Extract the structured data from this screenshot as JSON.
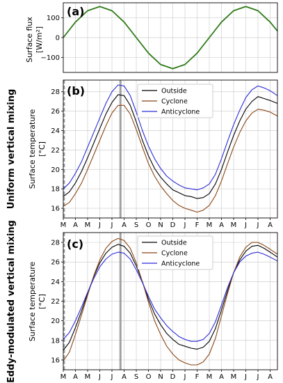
{
  "colors": {
    "flux": "#2d7a16",
    "outside": "#000000",
    "cyclone": "#8b4513",
    "anticyclone": "#2a2ad8",
    "grid": "#cfcfcf",
    "vline": "#a0a0a0"
  },
  "months": [
    "M",
    "A",
    "M",
    "J",
    "J",
    "A",
    "S",
    "O",
    "N",
    "D",
    "J",
    "F",
    "M",
    "A",
    "M",
    "J",
    "J",
    "A"
  ],
  "chart_data": [
    {
      "panel_label": "(a)",
      "type": "line",
      "ylabel": [
        "Surface flux",
        "[W/m²]"
      ],
      "yticks": [
        -100,
        0,
        100
      ],
      "ylim": [
        -175,
        175
      ],
      "xlim": [
        0,
        17.6
      ],
      "grid": true,
      "series": [
        {
          "key": "flux",
          "x": [
            0,
            1,
            2,
            3,
            4,
            5,
            6,
            7,
            8,
            9,
            10,
            11,
            12,
            13,
            14,
            15,
            16,
            17,
            17.6
          ],
          "y": [
            0,
            78,
            135,
            156,
            135,
            78,
            0,
            -78,
            -135,
            -156,
            -135,
            -78,
            0,
            78,
            135,
            156,
            135,
            78,
            33
          ]
        }
      ]
    },
    {
      "panel_label": "(b)",
      "row_label": "Uniform vertical mixing",
      "type": "line",
      "ylabel": [
        "Surface temperature",
        "[°C]"
      ],
      "yticks": [
        16,
        18,
        20,
        22,
        24,
        26,
        28
      ],
      "ylim": [
        15,
        29.2
      ],
      "xlim": [
        0,
        17.6
      ],
      "grid": true,
      "vlines": [
        {
          "x": 4.7,
          "style": "solid"
        },
        {
          "x": 0.08,
          "style": "dashed"
        }
      ],
      "legend": {
        "position": "upper-right",
        "entries": [
          "Outside",
          "Cyclone",
          "Anticyclone"
        ]
      },
      "series": [
        {
          "name": "Outside",
          "key": "outside",
          "x": [
            0,
            0.5,
            1,
            1.5,
            2,
            2.5,
            3,
            3.5,
            4,
            4.5,
            5,
            5.5,
            6,
            6.5,
            7,
            7.5,
            8,
            8.5,
            9,
            9.5,
            10,
            10.5,
            11,
            11.5,
            12,
            12.5,
            13,
            13.5,
            14,
            14.5,
            15,
            15.5,
            16,
            16.5,
            17,
            17.6
          ],
          "y": [
            17.2,
            17.7,
            18.6,
            19.8,
            21.2,
            22.7,
            24.2,
            25.7,
            26.9,
            27.7,
            27.6,
            26.6,
            24.9,
            23.0,
            21.4,
            20.1,
            19.2,
            18.5,
            17.9,
            17.6,
            17.3,
            17.2,
            17.0,
            17.1,
            17.5,
            18.5,
            20.0,
            21.8,
            23.5,
            25.0,
            26.2,
            27.0,
            27.5,
            27.3,
            27.1,
            26.8
          ]
        },
        {
          "name": "Cyclone",
          "key": "cyclone",
          "x": [
            0,
            0.5,
            1,
            1.5,
            2,
            2.5,
            3,
            3.5,
            4,
            4.5,
            5,
            5.5,
            6,
            6.5,
            7,
            7.5,
            8,
            8.5,
            9,
            9.5,
            10,
            10.5,
            11,
            11.5,
            12,
            12.5,
            13,
            13.5,
            14,
            14.5,
            15,
            15.5,
            16,
            16.5,
            17,
            17.6
          ],
          "y": [
            16.2,
            16.6,
            17.5,
            18.6,
            20.0,
            21.5,
            23.0,
            24.5,
            25.8,
            26.6,
            26.6,
            25.7,
            24.1,
            22.3,
            20.6,
            19.3,
            18.3,
            17.5,
            16.8,
            16.3,
            16.0,
            15.8,
            15.6,
            15.8,
            16.3,
            17.3,
            18.8,
            20.6,
            22.3,
            23.8,
            25.0,
            25.8,
            26.2,
            26.1,
            25.9,
            25.5
          ]
        },
        {
          "name": "Anticyclone",
          "key": "anticyclone",
          "x": [
            0,
            0.5,
            1,
            1.5,
            2,
            2.5,
            3,
            3.5,
            4,
            4.5,
            5,
            5.5,
            6,
            6.5,
            7,
            7.5,
            8,
            8.5,
            9,
            9.5,
            10,
            10.5,
            11,
            11.5,
            12,
            12.5,
            13,
            13.5,
            14,
            14.5,
            15,
            15.5,
            16,
            16.5,
            17,
            17.6
          ],
          "y": [
            18.0,
            18.6,
            19.6,
            20.8,
            22.3,
            23.8,
            25.3,
            26.8,
            28.0,
            28.7,
            28.6,
            27.6,
            25.9,
            24.0,
            22.4,
            21.1,
            20.1,
            19.3,
            18.8,
            18.4,
            18.1,
            18.0,
            17.9,
            18.1,
            18.5,
            19.5,
            21.1,
            22.9,
            24.6,
            26.1,
            27.4,
            28.2,
            28.6,
            28.4,
            28.1,
            27.6
          ]
        }
      ]
    },
    {
      "panel_label": "(c)",
      "row_label": "Eddy-modulated vertical mixing",
      "type": "line",
      "ylabel": [
        "Surface temperature",
        "[°C]"
      ],
      "yticks": [
        16,
        18,
        20,
        22,
        24,
        26,
        28
      ],
      "ylim": [
        15,
        29.0
      ],
      "xlim": [
        0,
        17.6
      ],
      "grid": true,
      "vlines": [
        {
          "x": 4.7,
          "style": "solid"
        },
        {
          "x": 0.08,
          "style": "dashed"
        }
      ],
      "legend": {
        "position": "upper-right",
        "entries": [
          "Outside",
          "Cyclone",
          "Anticyclone"
        ]
      },
      "series": [
        {
          "name": "Outside",
          "key": "outside",
          "x": [
            0,
            0.5,
            1,
            1.5,
            2,
            2.5,
            3,
            3.5,
            4,
            4.5,
            5,
            5.5,
            6,
            6.5,
            7,
            7.5,
            8,
            8.5,
            9,
            9.5,
            10,
            10.5,
            11,
            11.5,
            12,
            12.5,
            13,
            13.5,
            14,
            14.5,
            15,
            15.5,
            16,
            16.5,
            17,
            17.6
          ],
          "y": [
            17.0,
            17.8,
            19.3,
            21.0,
            22.8,
            24.5,
            25.9,
            26.9,
            27.5,
            27.8,
            27.6,
            26.9,
            25.6,
            24.0,
            22.2,
            20.7,
            19.6,
            18.7,
            18.1,
            17.6,
            17.4,
            17.2,
            17.1,
            17.3,
            17.9,
            19.2,
            21.1,
            23.1,
            24.9,
            26.2,
            27.1,
            27.6,
            27.7,
            27.4,
            27.0,
            26.5
          ]
        },
        {
          "name": "Cyclone",
          "key": "cyclone",
          "x": [
            0,
            0.5,
            1,
            1.5,
            2,
            2.5,
            3,
            3.5,
            4,
            4.5,
            5,
            5.5,
            6,
            6.5,
            7,
            7.5,
            8,
            8.5,
            9,
            9.5,
            10,
            10.5,
            11,
            11.5,
            12,
            12.5,
            13,
            13.5,
            14,
            14.5,
            15,
            15.5,
            16,
            16.5,
            17,
            17.6
          ],
          "y": [
            15.9,
            16.8,
            18.6,
            20.6,
            22.6,
            24.6,
            26.2,
            27.4,
            28.1,
            28.4,
            28.2,
            27.4,
            25.9,
            24.0,
            21.9,
            20.0,
            18.6,
            17.4,
            16.6,
            16.0,
            15.7,
            15.5,
            15.5,
            15.8,
            16.6,
            18.2,
            20.5,
            22.8,
            24.9,
            26.5,
            27.5,
            28.0,
            28.0,
            27.7,
            27.3,
            26.8
          ]
        },
        {
          "name": "Anticyclone",
          "key": "anticyclone",
          "x": [
            0,
            0.5,
            1,
            1.5,
            2,
            2.5,
            3,
            3.5,
            4,
            4.5,
            5,
            5.5,
            6,
            6.5,
            7,
            7.5,
            8,
            8.5,
            9,
            9.5,
            10,
            10.5,
            11,
            11.5,
            12,
            12.5,
            13,
            13.5,
            14,
            14.5,
            15,
            15.5,
            16,
            16.5,
            17,
            17.6
          ],
          "y": [
            18.1,
            18.8,
            20.0,
            21.4,
            22.9,
            24.3,
            25.5,
            26.3,
            26.8,
            27.0,
            26.9,
            26.3,
            25.2,
            23.9,
            22.5,
            21.2,
            20.3,
            19.5,
            18.9,
            18.4,
            18.1,
            17.9,
            17.9,
            18.1,
            18.7,
            19.9,
            21.6,
            23.4,
            24.9,
            26.0,
            26.6,
            26.9,
            27.0,
            26.8,
            26.5,
            26.1
          ]
        }
      ]
    }
  ]
}
